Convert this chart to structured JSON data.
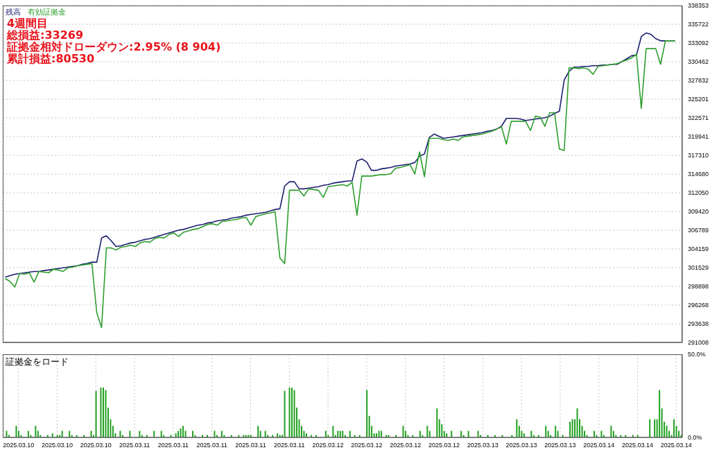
{
  "chart_data": [
    {
      "type": "line",
      "annotations": [
        "4週間目",
        "総損益:33269",
        "証拠金相対ドローダウン:2.95% (8 904)",
        "累計損益:80530"
      ],
      "categories": [
        null,
        null,
        null,
        "2025.03.10",
        null,
        null,
        null,
        null,
        null,
        null,
        null,
        "2025.03.10",
        null,
        null,
        null,
        null,
        null,
        null,
        null,
        "2025.03.10",
        null,
        null,
        null,
        null,
        null,
        null,
        null,
        "2025.03.11",
        null,
        null,
        null,
        null,
        null,
        null,
        null,
        "2025.03.11",
        null,
        null,
        null,
        null,
        null,
        null,
        null,
        "2025.03.11",
        null,
        null,
        null,
        null,
        null,
        null,
        null,
        "2025.03.11",
        null,
        null,
        null,
        null,
        null,
        null,
        null,
        "2025.03.11",
        null,
        null,
        null,
        null,
        null,
        null,
        null,
        "2025.03.12",
        null,
        null,
        null,
        null,
        null,
        null,
        null,
        "2025.03.12",
        null,
        null,
        null,
        null,
        null,
        null,
        null,
        "2025.03.12",
        null,
        null,
        null,
        null,
        null,
        null,
        null,
        "2025.03.12",
        null,
        null,
        null,
        null,
        null,
        null,
        null,
        "2025.03.13",
        null,
        null,
        null,
        null,
        null,
        null,
        null,
        "2025.03.13",
        null,
        null,
        null,
        null,
        null,
        null,
        null,
        "2025.03.13",
        null,
        null,
        null,
        null,
        null,
        null,
        null,
        "2025.03.14",
        null,
        null,
        null,
        null,
        null,
        null,
        null,
        "2025.03.14",
        null,
        null,
        null,
        null,
        null,
        null,
        null,
        "2025.03.14",
        null
      ],
      "series": [
        {
          "name": "残高",
          "color": "#1c1f6e",
          "values": [
            300200,
            300400,
            300600,
            300700,
            300800,
            300900,
            301000,
            301000,
            301100,
            301200,
            301300,
            301400,
            301500,
            301600,
            301700,
            301800,
            302000,
            302100,
            302300,
            302300,
            305700,
            306000,
            305300,
            304500,
            304600,
            304800,
            305000,
            305100,
            305300,
            305500,
            305600,
            305800,
            306000,
            306200,
            306400,
            306600,
            306800,
            306900,
            307100,
            307300,
            307500,
            307600,
            307800,
            307900,
            308100,
            308200,
            308300,
            308500,
            308600,
            308700,
            308900,
            309000,
            309100,
            309200,
            309300,
            309500,
            309700,
            309800,
            313000,
            313600,
            313600,
            312600,
            312600,
            312700,
            312800,
            312900,
            313100,
            313200,
            313400,
            313500,
            313600,
            313700,
            313700,
            316500,
            316800,
            316400,
            315200,
            315200,
            315400,
            315500,
            315600,
            315800,
            315900,
            316000,
            316100,
            316300,
            317200,
            317500,
            319800,
            320300,
            320000,
            319700,
            319800,
            319900,
            320000,
            320100,
            320200,
            320300,
            320400,
            320500,
            320700,
            320800,
            321000,
            321400,
            322500,
            322500,
            322500,
            322400,
            322200,
            322300,
            322400,
            322500,
            322600,
            322800,
            323200,
            323500,
            327900,
            329100,
            329700,
            329700,
            329800,
            329800,
            329900,
            329900,
            330000,
            330000,
            330100,
            330100,
            330500,
            330900,
            331300,
            331400,
            334000,
            334500,
            334300,
            333700,
            333400,
            333400,
            333400,
            333400,
            null
          ]
        },
        {
          "name": "有効証拠金",
          "color": "#2e9e2e",
          "values": [
            300000,
            299600,
            298800,
            300700,
            300600,
            300800,
            299500,
            301000,
            300900,
            300800,
            301300,
            301200,
            301000,
            301500,
            301600,
            301800,
            301900,
            302000,
            302100,
            295200,
            293100,
            304300,
            304300,
            304000,
            304400,
            304500,
            304700,
            304500,
            305000,
            305200,
            305100,
            305600,
            305800,
            305700,
            306200,
            306400,
            305900,
            306500,
            306700,
            306900,
            307000,
            307300,
            307600,
            307700,
            307500,
            308000,
            308100,
            308200,
            308300,
            308500,
            308600,
            307500,
            308700,
            308900,
            309100,
            309200,
            309400,
            302900,
            302100,
            312400,
            312400,
            312400,
            311600,
            312600,
            312500,
            312400,
            311400,
            312900,
            313000,
            313100,
            313200,
            313000,
            313500,
            308900,
            314400,
            314400,
            314400,
            314500,
            314600,
            314600,
            314700,
            315500,
            315600,
            315800,
            316000,
            314700,
            317800,
            314300,
            319700,
            319700,
            319700,
            319500,
            319400,
            319600,
            319400,
            319900,
            320000,
            320100,
            320200,
            320300,
            320500,
            320700,
            321000,
            321300,
            318900,
            322100,
            322100,
            322100,
            322100,
            320800,
            322800,
            322700,
            321400,
            323300,
            323300,
            318200,
            318000,
            329600,
            329600,
            329500,
            329600,
            329400,
            328700,
            329800,
            329900,
            330000,
            330100,
            330200,
            330500,
            330700,
            331000,
            331500,
            323900,
            332300,
            332300,
            332300,
            330100,
            333400,
            333400,
            333400,
            null
          ]
        }
      ],
      "ylim": [
        291008,
        338353
      ],
      "yticks": [
        291008,
        293638,
        296268,
        298898,
        301529,
        304159,
        306789,
        309420,
        312050,
        314680,
        317310,
        319941,
        322571,
        325201,
        327832,
        330462,
        333092,
        335722,
        338353
      ],
      "tick_labels": "y",
      "grid": true,
      "legend": "top left"
    },
    {
      "type": "bar",
      "title": "証拠金をロード",
      "categories": [
        null,
        null,
        null,
        null,
        null,
        null,
        "2025.03.10",
        null,
        null,
        null,
        null,
        null,
        null,
        null,
        null,
        null,
        null,
        null,
        null,
        null,
        null,
        null,
        "2025.03.10",
        null,
        null,
        null,
        null,
        null,
        null,
        null,
        null,
        null,
        null,
        null,
        null,
        null,
        null,
        null,
        "2025.03.10",
        null,
        null,
        null,
        null,
        null,
        null,
        null,
        null,
        null,
        null,
        null,
        null,
        null,
        null,
        null,
        "2025.03.11",
        null,
        null,
        null,
        null,
        null,
        null,
        null,
        null,
        null,
        null,
        null,
        null,
        null,
        null,
        null,
        "2025.03.11",
        null,
        null,
        null,
        null,
        null,
        null,
        null,
        null,
        null,
        null,
        null,
        null,
        null,
        null,
        null,
        "2025.03.11",
        null,
        null,
        null,
        null,
        null,
        null,
        null,
        null,
        null,
        null,
        null,
        null,
        null,
        null,
        null,
        "2025.03.11",
        null,
        null,
        null,
        null,
        null,
        null,
        null,
        null,
        null,
        null,
        null,
        null,
        null,
        null,
        null,
        "2025.03.11",
        null,
        null,
        null,
        null,
        null,
        null,
        null,
        null,
        null,
        null,
        null,
        null,
        null,
        null,
        null,
        "2025.03.12",
        null,
        null,
        null,
        null,
        null,
        null,
        null,
        null,
        null,
        null,
        null,
        null,
        null,
        null,
        null,
        "2025.03.12",
        null,
        null,
        null,
        null,
        null,
        null,
        null,
        null,
        null,
        null,
        null,
        null,
        null,
        null,
        null,
        "2025.03.12",
        null,
        null,
        null,
        null,
        null,
        null,
        null,
        null,
        null,
        null,
        null,
        null,
        null,
        null,
        null,
        "2025.03.12",
        null,
        null,
        null,
        null,
        null,
        null,
        null,
        null,
        null,
        null,
        null,
        null,
        null,
        null,
        null,
        "2025.03.13",
        null,
        null,
        null,
        null,
        null,
        null,
        null,
        null,
        null,
        null,
        null,
        null,
        null,
        null,
        null,
        "2025.03.13",
        null,
        null,
        null,
        null,
        null,
        null,
        null,
        null,
        null,
        null,
        null,
        null,
        null,
        null,
        null,
        "2025.03.13",
        null,
        null,
        null,
        null,
        null,
        null,
        null,
        null,
        null,
        null,
        null,
        null,
        null,
        null,
        null,
        "2025.03.14",
        null,
        null,
        null,
        null,
        null,
        null,
        null,
        null,
        null,
        null,
        null,
        null,
        null,
        null,
        null,
        "2025.03.14",
        null,
        null,
        null,
        null,
        null,
        null,
        null,
        null,
        null,
        null,
        null,
        null,
        null,
        null,
        null,
        "2025.03.14",
        null,
        null
      ],
      "series": [
        {
          "color": "#1fa01f",
          "values": [
            null,
            4,
            1.5,
            null,
            null,
            7,
            4,
            1.5,
            null,
            null,
            4,
            1.5,
            null,
            7,
            4,
            1.5,
            null,
            null,
            1.5,
            null,
            2.5,
            null,
            1.5,
            1.5,
            4,
            null,
            null,
            4,
            1.5,
            null,
            1.5,
            null,
            null,
            1.5,
            null,
            null,
            4,
            1.5,
            28,
            null,
            30,
            30,
            28.5,
            18,
            11,
            7,
            2.5,
            null,
            4,
            1.5,
            null,
            null,
            4,
            null,
            null,
            null,
            4,
            1.5,
            null,
            1.5,
            null,
            null,
            4,
            null,
            null,
            4,
            1.5,
            null,
            null,
            1.5,
            null,
            2.5,
            4,
            5.5,
            7,
            4,
            null,
            null,
            4,
            1.5,
            null,
            null,
            1.5,
            null,
            1.5,
            null,
            null,
            4,
            1.5,
            null,
            4,
            1.5,
            null,
            null,
            1.5,
            null,
            null,
            1.5,
            null,
            1.5,
            1.5,
            1.5,
            1.5,
            null,
            null,
            7,
            4,
            null,
            4,
            1.5,
            null,
            1.5,
            null,
            2.5,
            1.5,
            1.5,
            28,
            null,
            30,
            30,
            28.5,
            18,
            11,
            7,
            4,
            2.5,
            null,
            1.5,
            null,
            1.5,
            null,
            null,
            null,
            4,
            1.5,
            null,
            7,
            1.5,
            4,
            4,
            4,
            1.5,
            null,
            4,
            null,
            1.5,
            null,
            1.5,
            null,
            null,
            28.5,
            13,
            7,
            2.5,
            2.5,
            4,
            4,
            null,
            1.5,
            1.5,
            null,
            null,
            1.5,
            null,
            null,
            7,
            4,
            1.5,
            null,
            1.5,
            null,
            null,
            4,
            1.5,
            null,
            7,
            4,
            null,
            null,
            17.5,
            11,
            8,
            4,
            2.5,
            null,
            4,
            null,
            null,
            null,
            4,
            1.5,
            null,
            4,
            null,
            null,
            null,
            4,
            1.5,
            null,
            null,
            1.5,
            null,
            null,
            1.5,
            null,
            null,
            1.5,
            null,
            null,
            null,
            1.5,
            null,
            11,
            7,
            4,
            2.5,
            null,
            null,
            4,
            1.5,
            null,
            1.5,
            null,
            null,
            7,
            4,
            1.5,
            null,
            7,
            4,
            null,
            1.5,
            null,
            null,
            9.5,
            11,
            11,
            17.5,
            11,
            7,
            4,
            1.5,
            null,
            null,
            4,
            1.5,
            null,
            4,
            1.5,
            null,
            null,
            7,
            4,
            1.5,
            null,
            1.5,
            null,
            1.5,
            null,
            null,
            1.5,
            null,
            1.5,
            null,
            null,
            null,
            null,
            11,
            null,
            11,
            11,
            28.5,
            17.5,
            9.5,
            7,
            4,
            1.5,
            11,
            7,
            4,
            1.5
          ]
        }
      ],
      "ylim": [
        0,
        50
      ],
      "yticks": [
        {
          "value": 0,
          "label": "0.0%"
        },
        {
          "value": 50,
          "label": "50.0%"
        }
      ],
      "grid": "x"
    }
  ]
}
